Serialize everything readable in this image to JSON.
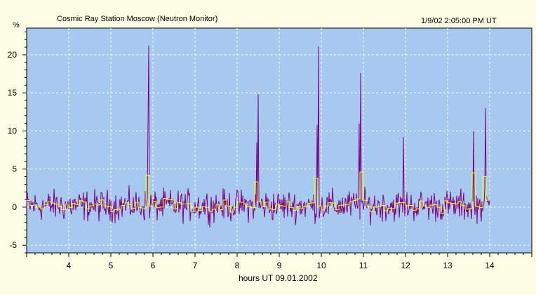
{
  "header": {
    "title": "Cosmic Ray Station Moscow (Neutron Monitor)",
    "timestamp": "1/9/02 2:05:00 PM UT"
  },
  "colors": {
    "page_background": "#fdfde6",
    "plot_background": "#a7c8ef",
    "grid": "#ffffff",
    "series_1min": "#800080",
    "series_5min": "#ffff00"
  },
  "chart_data": {
    "type": "line",
    "title": "",
    "xlabel": "hours UT 09.01.2002",
    "ylabel": "%",
    "xlim": [
      3,
      15
    ],
    "ylim": [
      -6,
      23.5
    ],
    "x_ticks": [
      4,
      5,
      6,
      7,
      8,
      9,
      10,
      11,
      12,
      13,
      14
    ],
    "y_ticks": [
      -5,
      0,
      5,
      10,
      15,
      20
    ],
    "grid": true,
    "legend": "none",
    "series": [
      {
        "resolution": "1 min",
        "x_start": 3,
        "x_end": 14,
        "baseline": 0.2,
        "noise_range": [
          -4,
          4.2
        ],
        "peaks": [
          {
            "x": 5.88,
            "y": 11.0
          },
          {
            "x": 5.9,
            "y": 21.2
          },
          {
            "x": 8.47,
            "y": 8.5
          },
          {
            "x": 8.5,
            "y": 14.8
          },
          {
            "x": 9.9,
            "y": 10.8
          },
          {
            "x": 9.93,
            "y": 21.1
          },
          {
            "x": 10.9,
            "y": 11.0
          },
          {
            "x": 10.93,
            "y": 17.6
          },
          {
            "x": 11.95,
            "y": 9.2
          },
          {
            "x": 13.62,
            "y": 10.0
          },
          {
            "x": 13.9,
            "y": 13.0
          }
        ]
      },
      {
        "resolution": "5 min",
        "x_start": 3,
        "x_end": 14,
        "highlights": [
          {
            "x": 5.83,
            "y": 4.2
          },
          {
            "x": 8.43,
            "y": 3.3
          },
          {
            "x": 9.85,
            "y": 3.8
          },
          {
            "x": 10.88,
            "y": 4.6
          },
          {
            "x": 13.6,
            "y": 4.5
          },
          {
            "x": 13.85,
            "y": 4.0
          }
        ]
      }
    ]
  }
}
